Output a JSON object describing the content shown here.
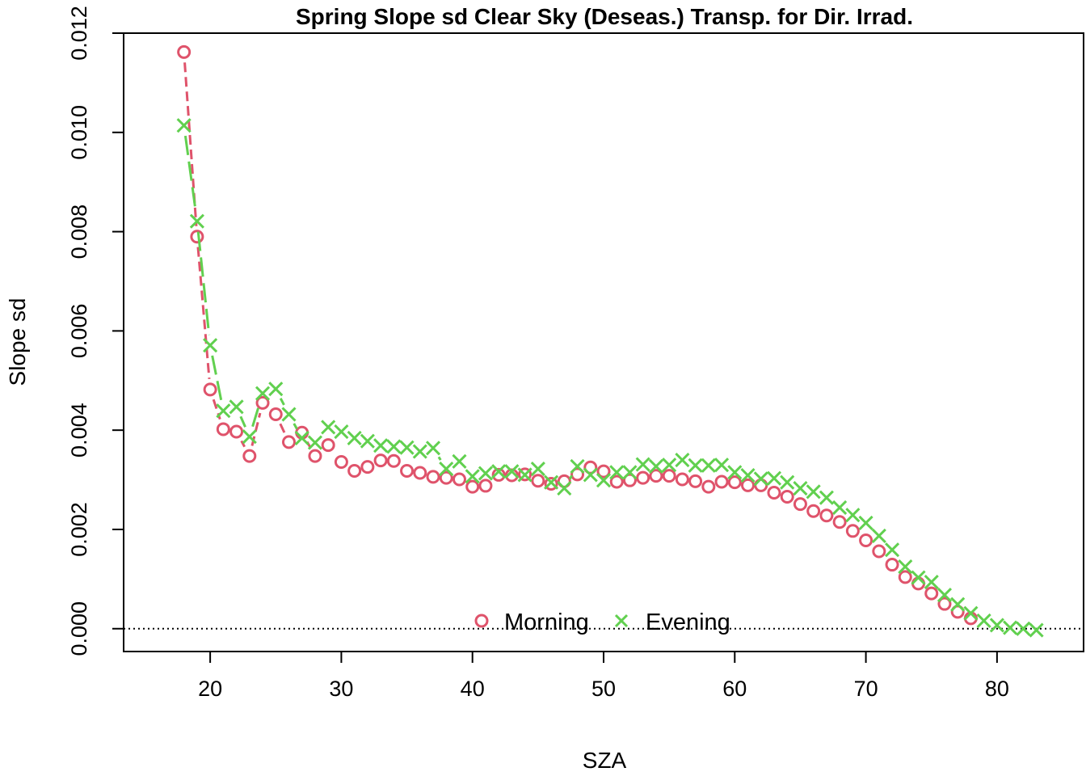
{
  "colors": {
    "morning": "#DF536B",
    "evening": "#61D04F",
    "axis": "#000000"
  },
  "chart_data": {
    "type": "line",
    "title": "Spring Slope sd Clear Sky (Deseas.) Transp. for Dir. Irrad.",
    "xlabel": "SZA",
    "ylabel": "Slope sd",
    "xlim": [
      13.4,
      86.6
    ],
    "ylim": [
      -0.00046,
      0.012
    ],
    "x_ticks": [
      20,
      30,
      40,
      50,
      60,
      70,
      80
    ],
    "x_tick_labels": [
      "20",
      "30",
      "40",
      "50",
      "60",
      "70",
      "80"
    ],
    "y_ticks": [
      0,
      0.002,
      0.004,
      0.006,
      0.008,
      0.01,
      0.012
    ],
    "y_tick_labels": [
      "0.000",
      "0.002",
      "0.004",
      "0.006",
      "0.008",
      "0.010",
      "0.012"
    ],
    "grid": false,
    "reference_line": {
      "y": 0,
      "style": "dotted"
    },
    "legend": {
      "position": "bottom-center",
      "entries": [
        "Morning",
        "Evening"
      ]
    },
    "series": [
      {
        "name": "Morning",
        "marker": "circle",
        "line": "dashed",
        "x": [
          18,
          19,
          20,
          21,
          22,
          23,
          24,
          25,
          26,
          27,
          28,
          29,
          30,
          31,
          32,
          33,
          34,
          35,
          36,
          37,
          38,
          39,
          40,
          41,
          42,
          43,
          44,
          45,
          46,
          47,
          48,
          49,
          50,
          51,
          52,
          53,
          54,
          55,
          56,
          57,
          58,
          59,
          60,
          61,
          62,
          63,
          64,
          65,
          66,
          67,
          68,
          69,
          70,
          71,
          72,
          73,
          74,
          75,
          76,
          77,
          78
        ],
        "y": [
          0.01162,
          0.0079,
          0.00482,
          0.00402,
          0.00397,
          0.00348,
          0.00455,
          0.00432,
          0.00376,
          0.00395,
          0.00348,
          0.0037,
          0.00336,
          0.00318,
          0.00326,
          0.00339,
          0.00338,
          0.00318,
          0.00314,
          0.00306,
          0.00304,
          0.00301,
          0.00286,
          0.00288,
          0.0031,
          0.00309,
          0.00311,
          0.00298,
          0.00292,
          0.00297,
          0.00311,
          0.00325,
          0.00317,
          0.00296,
          0.00299,
          0.00304,
          0.00308,
          0.00308,
          0.00301,
          0.00297,
          0.00286,
          0.00296,
          0.00295,
          0.00289,
          0.00289,
          0.00274,
          0.00266,
          0.00251,
          0.00237,
          0.00228,
          0.00215,
          0.00197,
          0.00178,
          0.00156,
          0.00129,
          0.00104,
          0.00091,
          0.00071,
          0.0005,
          0.00034,
          0.00021
        ]
      },
      {
        "name": "Evening",
        "marker": "x",
        "line": "longdash",
        "x": [
          18,
          19,
          20,
          21,
          22,
          23,
          24,
          25,
          26,
          27,
          28,
          29,
          30,
          31,
          32,
          33,
          34,
          35,
          36,
          37,
          38,
          39,
          40,
          41,
          42,
          43,
          44,
          45,
          46,
          47,
          48,
          49,
          50,
          51,
          52,
          53,
          54,
          55,
          56,
          57,
          58,
          59,
          60,
          61,
          62,
          63,
          64,
          65,
          66,
          67,
          68,
          69,
          70,
          71,
          72,
          73,
          74,
          75,
          76,
          77,
          78,
          79,
          80,
          81,
          82,
          83
        ],
        "y": [
          0.01014,
          0.00821,
          0.00571,
          0.00439,
          0.00447,
          0.00387,
          0.00474,
          0.00483,
          0.00432,
          0.00384,
          0.00375,
          0.00406,
          0.00397,
          0.00384,
          0.00378,
          0.00369,
          0.00367,
          0.00365,
          0.00357,
          0.00364,
          0.00322,
          0.00337,
          0.00307,
          0.00313,
          0.00317,
          0.00317,
          0.0031,
          0.00322,
          0.00295,
          0.00283,
          0.00327,
          0.0031,
          0.00299,
          0.00315,
          0.00315,
          0.00331,
          0.00327,
          0.0033,
          0.0034,
          0.00329,
          0.00329,
          0.0033,
          0.00315,
          0.00309,
          0.00302,
          0.00303,
          0.00295,
          0.00283,
          0.00276,
          0.00264,
          0.00244,
          0.00229,
          0.00213,
          0.00187,
          0.00159,
          0.00125,
          0.00103,
          0.00094,
          0.00068,
          0.00049,
          0.00031,
          0.00016,
          7e-05,
          2e-05,
          0.0,
          -3e-05
        ]
      }
    ]
  }
}
